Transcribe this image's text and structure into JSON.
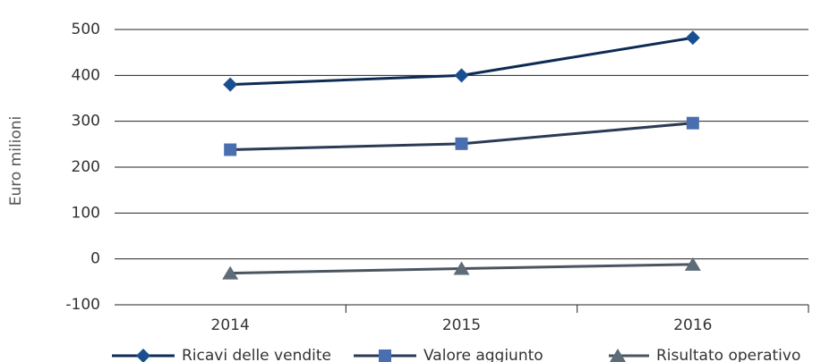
{
  "chart_data": {
    "type": "line",
    "y_label": "Euro milioni",
    "categories": [
      "2014",
      "2015",
      "2016"
    ],
    "series": [
      {
        "name": "Ricavi delle vendite",
        "color": "#0d2b55",
        "marker_color": "#1a4f8f",
        "marker": "diamond",
        "values": [
          380,
          400,
          482
        ]
      },
      {
        "name": "Valore aggiunto",
        "color": "#2b3a55",
        "marker_color": "#4a6fb0",
        "marker": "square",
        "values": [
          238,
          251,
          296
        ]
      },
      {
        "name": "Risultato operativo",
        "color": "#4a5560",
        "marker_color": "#5e6b78",
        "marker": "triangle",
        "values": [
          -31,
          -21,
          -12
        ]
      }
    ],
    "ylim": [
      -100,
      500
    ],
    "yticks": [
      -100,
      0,
      100,
      200,
      300,
      400,
      500
    ],
    "grid": true,
    "legend": "bottom"
  }
}
